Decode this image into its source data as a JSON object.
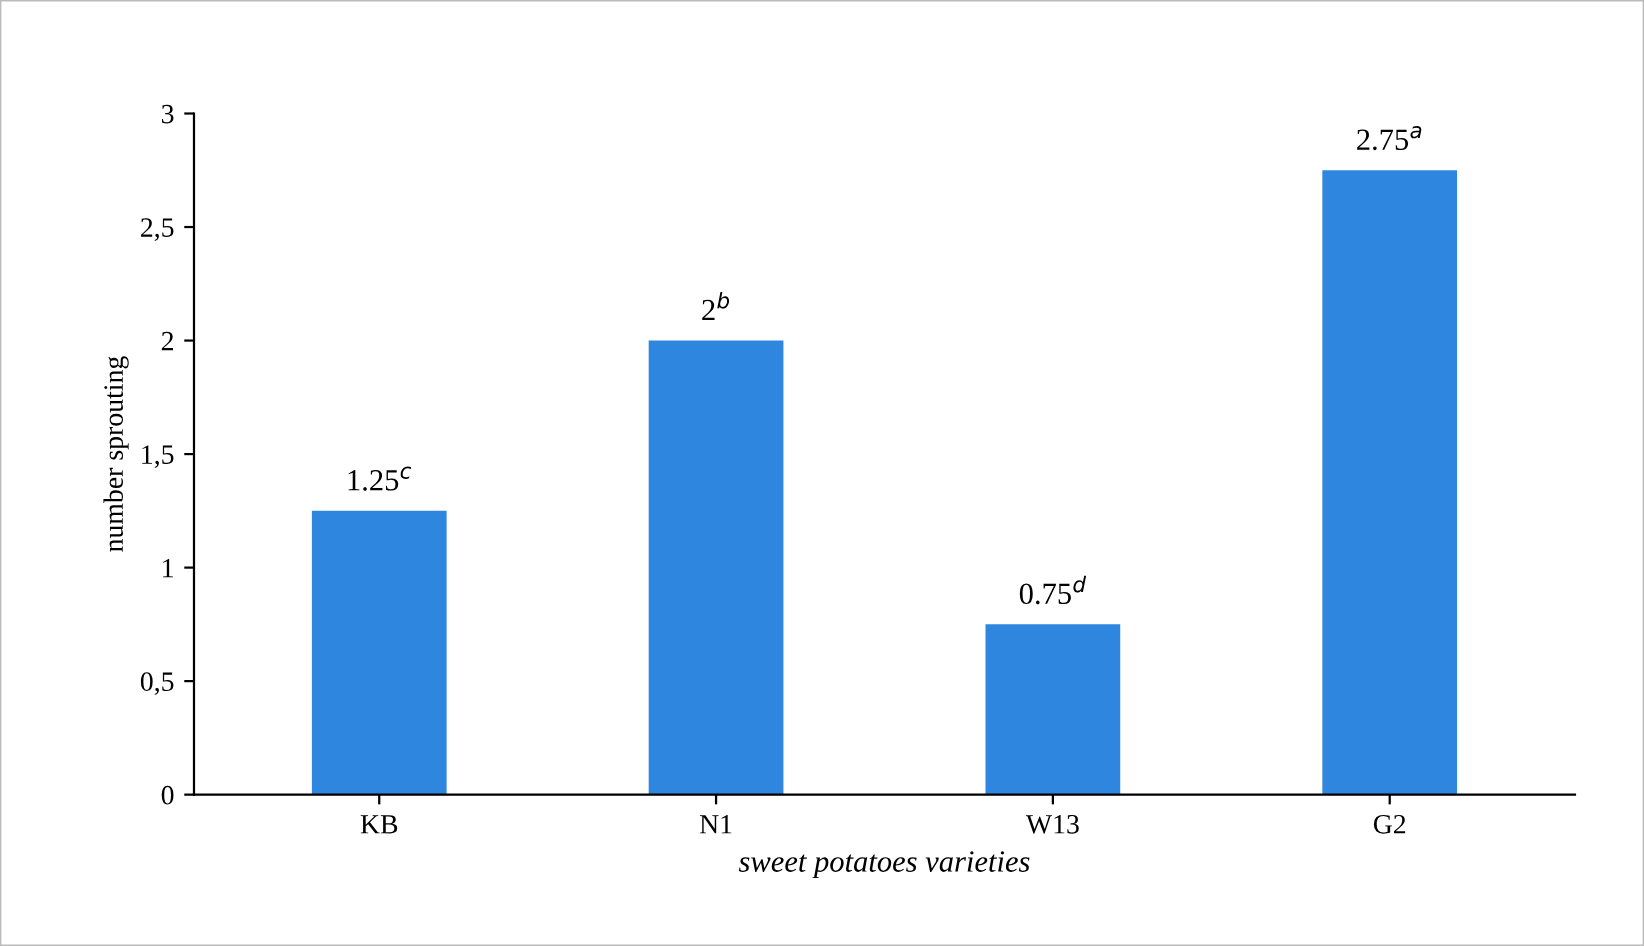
{
  "chart_data": {
    "type": "bar",
    "xlabel": "sweet potatoes varieties",
    "ylabel": "number sprouting",
    "categories": [
      "KB",
      "N1",
      "W13",
      "G2"
    ],
    "values": [
      1.25,
      2,
      0.75,
      2.75
    ],
    "value_labels": [
      "1.25$^{c}$",
      "2$^{b}$",
      "0.75$^{d}$",
      "2.75$^{a}$"
    ],
    "color": "#2e86de",
    "ylim": [
      0,
      3
    ],
    "yticks": [
      0,
      {
        "value": 0.5,
        "label": "0,5"
      },
      1,
      {
        "value": 1.5,
        "label": "1,5"
      },
      2,
      {
        "value": 2.5,
        "label": "2,5"
      },
      3
    ],
    "grid": false,
    "legend": false
  }
}
